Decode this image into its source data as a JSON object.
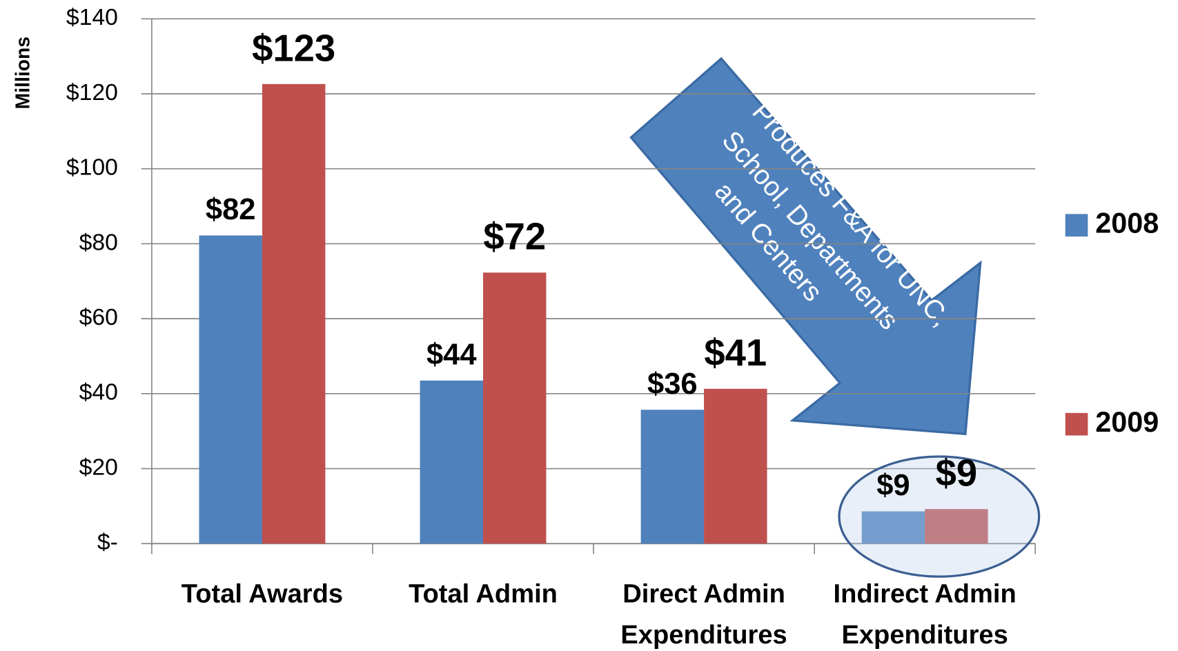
{
  "chart_data": {
    "type": "bar",
    "y_label": "Millions",
    "categories": [
      "Total Awards",
      "Total Admin",
      "Direct Admin Expenditures",
      "Indirect Admin Expenditures"
    ],
    "series": [
      {
        "name": "2008",
        "color": "#4f81bd",
        "values": [
          82.2,
          43.5,
          35.7,
          8.6
        ],
        "value_labels": [
          "$82",
          "$44",
          "$36",
          "$9"
        ]
      },
      {
        "name": "2009",
        "color": "#c0504d",
        "values": [
          122.6,
          72.3,
          41.3,
          9.2
        ],
        "value_labels": [
          "$123",
          "$72",
          "$41",
          "$9"
        ]
      }
    ],
    "ylim": [
      0,
      140
    ],
    "yticks": [
      {
        "value": 0,
        "label": "$-"
      },
      {
        "value": 20,
        "label": "$20"
      },
      {
        "value": 40,
        "label": "$40"
      },
      {
        "value": 60,
        "label": "$60"
      },
      {
        "value": 80,
        "label": "$80"
      },
      {
        "value": 100,
        "label": "$100"
      },
      {
        "value": 120,
        "label": "$120"
      },
      {
        "value": 140,
        "label": "$140"
      }
    ],
    "grid": true,
    "legend": "right",
    "annotation": [
      "Produces F&A for UNC,",
      "School,  Departments",
      "and Centers"
    ]
  }
}
